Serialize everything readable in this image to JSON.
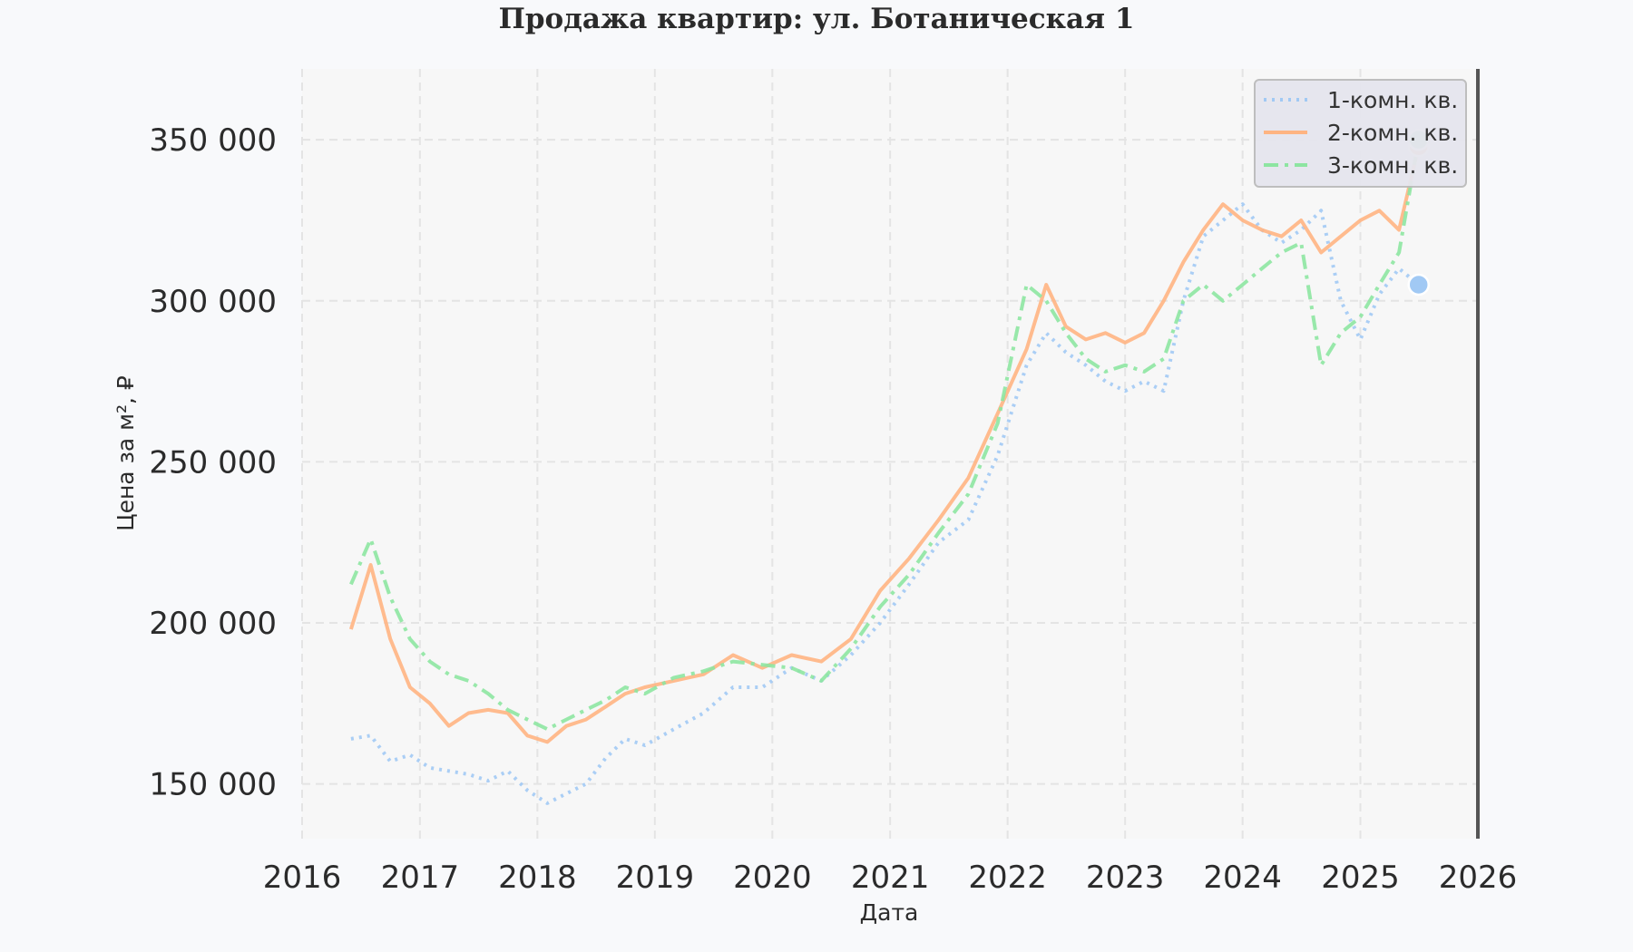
{
  "chart_data": {
    "type": "line",
    "title": "Продажа квартир: ул. Ботаническая 1",
    "xlabel": "Дата",
    "ylabel": "Цена за м², ₽",
    "xlim": [
      "2016-01-01",
      "2026-01-01"
    ],
    "ylim": [
      133000,
      372000
    ],
    "x_ticks": [
      "2016",
      "2017",
      "2018",
      "2019",
      "2020",
      "2021",
      "2022",
      "2023",
      "2024",
      "2025",
      "2026"
    ],
    "y_ticks": [
      150000,
      200000,
      250000,
      300000,
      350000
    ],
    "y_tick_labels": [
      "150 000",
      "200 000",
      "250 000",
      "300 000",
      "350 000"
    ],
    "grid": true,
    "legend_position": "top-right",
    "colors": {
      "background": "#f8f9fb",
      "plot_background": "#f7f7f7",
      "grid": "#e4e4e4",
      "vline": "#555555",
      "legend_background": "#e6e6ee",
      "legend_border": "#bbbbbb"
    },
    "series": [
      {
        "name": "1-комн. кв.",
        "color": "#a1c9f4",
        "dash": "dotted",
        "x": [
          "2016-06-01",
          "2016-08-01",
          "2016-10-01",
          "2016-12-01",
          "2017-02-01",
          "2017-04-01",
          "2017-06-01",
          "2017-08-01",
          "2017-10-01",
          "2017-12-01",
          "2018-02-01",
          "2018-04-01",
          "2018-06-01",
          "2018-08-01",
          "2018-10-01",
          "2018-12-01",
          "2019-03-01",
          "2019-06-01",
          "2019-09-01",
          "2019-12-01",
          "2020-03-01",
          "2020-06-01",
          "2020-09-01",
          "2020-12-01",
          "2021-03-01",
          "2021-06-01",
          "2021-09-01",
          "2021-12-01",
          "2022-03-01",
          "2022-05-01",
          "2022-07-01",
          "2022-09-01",
          "2022-11-01",
          "2023-01-01",
          "2023-03-01",
          "2023-05-01",
          "2023-07-01",
          "2023-09-01",
          "2023-11-01",
          "2024-01-01",
          "2024-03-01",
          "2024-05-01",
          "2024-07-01",
          "2024-09-01",
          "2024-11-01",
          "2025-01-01",
          "2025-03-01",
          "2025-05-01",
          "2025-07-01"
        ],
        "values": [
          164000,
          165000,
          157000,
          159000,
          155000,
          154000,
          153000,
          151000,
          154000,
          148000,
          144000,
          147000,
          150000,
          158000,
          164000,
          162000,
          167000,
          172000,
          180000,
          180000,
          186000,
          182000,
          190000,
          200000,
          212000,
          225000,
          232000,
          252000,
          280000,
          290000,
          284000,
          280000,
          275000,
          272000,
          275000,
          272000,
          300000,
          320000,
          325000,
          330000,
          322000,
          318000,
          322000,
          328000,
          300000,
          288000,
          302000,
          310000,
          305000
        ]
      },
      {
        "name": "2-комн. кв.",
        "color": "#ffb482",
        "dash": "solid",
        "x": [
          "2016-06-01",
          "2016-08-01",
          "2016-10-01",
          "2016-12-01",
          "2017-02-01",
          "2017-04-01",
          "2017-06-01",
          "2017-08-01",
          "2017-10-01",
          "2017-12-01",
          "2018-02-01",
          "2018-04-01",
          "2018-06-01",
          "2018-08-01",
          "2018-10-01",
          "2018-12-01",
          "2019-03-01",
          "2019-06-01",
          "2019-09-01",
          "2019-12-01",
          "2020-03-01",
          "2020-06-01",
          "2020-09-01",
          "2020-12-01",
          "2021-03-01",
          "2021-06-01",
          "2021-09-01",
          "2021-12-01",
          "2022-03-01",
          "2022-05-01",
          "2022-07-01",
          "2022-09-01",
          "2022-11-01",
          "2023-01-01",
          "2023-03-01",
          "2023-05-01",
          "2023-07-01",
          "2023-09-01",
          "2023-11-01",
          "2024-01-01",
          "2024-03-01",
          "2024-05-01",
          "2024-07-01",
          "2024-09-01",
          "2024-11-01",
          "2025-01-01",
          "2025-03-01",
          "2025-05-01",
          "2025-07-01"
        ],
        "values": [
          198000,
          218000,
          195000,
          180000,
          175000,
          168000,
          172000,
          173000,
          172000,
          165000,
          163000,
          168000,
          170000,
          174000,
          178000,
          180000,
          182000,
          184000,
          190000,
          186000,
          190000,
          188000,
          195000,
          210000,
          220000,
          232000,
          245000,
          265000,
          285000,
          305000,
          292000,
          288000,
          290000,
          287000,
          290000,
          300000,
          312000,
          322000,
          330000,
          325000,
          322000,
          320000,
          325000,
          315000,
          320000,
          325000,
          328000,
          322000,
          348000
        ]
      },
      {
        "name": "3-комн. кв.",
        "color": "#8de5a1",
        "dash": "dashdot",
        "x": [
          "2016-06-01",
          "2016-08-01",
          "2016-10-01",
          "2016-12-01",
          "2017-02-01",
          "2017-04-01",
          "2017-06-01",
          "2017-08-01",
          "2017-10-01",
          "2017-12-01",
          "2018-02-01",
          "2018-04-01",
          "2018-06-01",
          "2018-08-01",
          "2018-10-01",
          "2018-12-01",
          "2019-03-01",
          "2019-06-01",
          "2019-09-01",
          "2019-12-01",
          "2020-03-01",
          "2020-06-01",
          "2020-09-01",
          "2020-12-01",
          "2021-03-01",
          "2021-06-01",
          "2021-09-01",
          "2021-12-01",
          "2022-03-01",
          "2022-05-01",
          "2022-07-01",
          "2022-09-01",
          "2022-11-01",
          "2023-01-01",
          "2023-03-01",
          "2023-05-01",
          "2023-07-01",
          "2023-09-01",
          "2023-11-01",
          "2024-01-01",
          "2024-03-01",
          "2024-05-01",
          "2024-07-01",
          "2024-09-01",
          "2024-11-01",
          "2025-01-01",
          "2025-03-01",
          "2025-05-01",
          "2025-07-01"
        ],
        "values": [
          212000,
          226000,
          208000,
          195000,
          188000,
          184000,
          182000,
          178000,
          173000,
          170000,
          167000,
          170000,
          173000,
          176000,
          180000,
          178000,
          183000,
          185000,
          188000,
          187000,
          186000,
          182000,
          192000,
          205000,
          215000,
          228000,
          240000,
          262000,
          305000,
          300000,
          290000,
          282000,
          278000,
          280000,
          278000,
          282000,
          300000,
          305000,
          300000,
          305000,
          310000,
          315000,
          318000,
          280000,
          290000,
          295000,
          305000,
          315000,
          350000
        ]
      }
    ]
  }
}
